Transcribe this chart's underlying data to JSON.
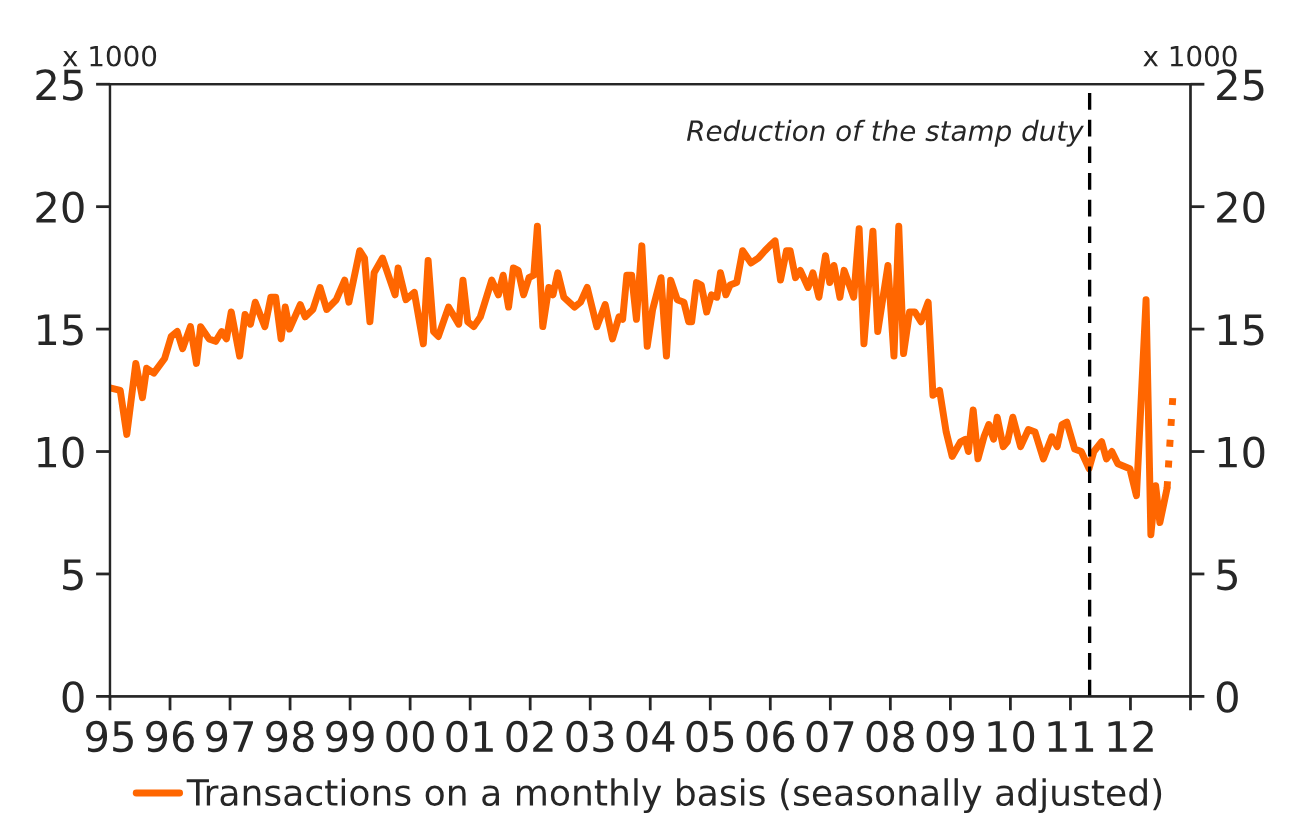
{
  "chart_data": {
    "type": "line",
    "ylabel": "x 1000",
    "y2label": "x 1000",
    "xlim": [
      1995,
      2013
    ],
    "xticks": [
      {
        "value": 1995,
        "label": "95"
      },
      {
        "value": 1996,
        "label": "96"
      },
      {
        "value": 1997,
        "label": "97"
      },
      {
        "value": 1998,
        "label": "98"
      },
      {
        "value": 1999,
        "label": "99"
      },
      {
        "value": 2000,
        "label": "00"
      },
      {
        "value": 2001,
        "label": "01"
      },
      {
        "value": 2002,
        "label": "02"
      },
      {
        "value": 2003,
        "label": "03"
      },
      {
        "value": 2004,
        "label": "04"
      },
      {
        "value": 2005,
        "label": "05"
      },
      {
        "value": 2006,
        "label": "06"
      },
      {
        "value": 2007,
        "label": "07"
      },
      {
        "value": 2008,
        "label": "08"
      },
      {
        "value": 2009,
        "label": "09"
      },
      {
        "value": 2010,
        "label": "10"
      },
      {
        "value": 2011,
        "label": "11"
      },
      {
        "value": 2012,
        "label": "12"
      },
      {
        "value": 2013,
        "label": null
      }
    ],
    "ylim": [
      0,
      25
    ],
    "yticks": [
      0,
      5,
      10,
      15,
      20,
      25
    ],
    "y2lim": [
      0,
      25
    ],
    "y2ticks": [
      0,
      5,
      10,
      15,
      20,
      25
    ],
    "grid": false,
    "legend": "bottom",
    "marker": "none",
    "ref_lines": [
      {
        "axis": "x",
        "value": 2011.32,
        "label": "Reduction of the stamp duty",
        "color": "#000000",
        "line_style": "dashed"
      }
    ],
    "series": [
      {
        "name": "Transactions on a monthly basis (seasonally adjusted)",
        "color": "#ff6600",
        "line_style": "solid",
        "x": [
          1995.0,
          1995.17,
          1995.28,
          1995.43,
          1995.54,
          1995.61,
          1995.73,
          1995.91,
          1996.02,
          1996.12,
          1996.21,
          1996.34,
          1996.44,
          1996.51,
          1996.65,
          1996.76,
          1996.86,
          1996.94,
          1997.02,
          1997.16,
          1997.25,
          1997.34,
          1997.42,
          1997.58,
          1997.68,
          1997.76,
          1997.85,
          1997.92,
          1997.99,
          1998.17,
          1998.25,
          1998.38,
          1998.5,
          1998.61,
          1998.77,
          1998.91,
          1998.98,
          1999.16,
          1999.24,
          1999.33,
          1999.4,
          1999.54,
          1999.75,
          1999.8,
          1999.93,
          2000.07,
          2000.22,
          2000.3,
          2000.39,
          2000.47,
          2000.64,
          2000.81,
          2000.88,
          2000.96,
          2001.06,
          2001.17,
          2001.36,
          2001.47,
          2001.55,
          2001.64,
          2001.72,
          2001.8,
          2001.89,
          2001.98,
          2002.06,
          2002.12,
          2002.21,
          2002.31,
          2002.38,
          2002.46,
          2002.56,
          2002.74,
          2002.84,
          2002.95,
          2003.11,
          2003.25,
          2003.37,
          2003.48,
          2003.54,
          2003.61,
          2003.69,
          2003.77,
          2003.86,
          2003.95,
          2004.04,
          2004.18,
          2004.27,
          2004.34,
          2004.45,
          2004.56,
          2004.64,
          2004.69,
          2004.77,
          2004.85,
          2004.94,
          2005.02,
          2005.11,
          2005.17,
          2005.26,
          2005.33,
          2005.44,
          2005.54,
          2005.68,
          2005.8,
          2005.91,
          2005.99,
          2006.08,
          2006.17,
          2006.27,
          2006.33,
          2006.42,
          2006.5,
          2006.63,
          2006.71,
          2006.81,
          2006.92,
          2006.99,
          2007.06,
          2007.16,
          2007.23,
          2007.39,
          2007.48,
          2007.56,
          2007.71,
          2007.79,
          2007.96,
          2008.06,
          2008.14,
          2008.22,
          2008.32,
          2008.41,
          2008.51,
          2008.63,
          2008.71,
          2008.82,
          2008.93,
          2009.03,
          2009.17,
          2009.25,
          2009.3,
          2009.38,
          2009.46,
          2009.56,
          2009.64,
          2009.72,
          2009.78,
          2009.88,
          2009.95,
          2010.04,
          2010.17,
          2010.3,
          2010.41,
          2010.55,
          2010.69,
          2010.78,
          2010.86,
          2010.94,
          2011.07,
          2011.18,
          2011.31,
          2011.39,
          2011.52,
          2011.6,
          2011.69,
          2011.79,
          2011.99,
          2012.1,
          2012.26,
          2012.34,
          2012.42,
          2012.49,
          2012.61
        ],
        "values": [
          12.6,
          12.5,
          10.7,
          13.6,
          12.2,
          13.4,
          13.2,
          13.8,
          14.7,
          14.9,
          14.2,
          15.1,
          13.6,
          15.1,
          14.6,
          14.5,
          14.9,
          14.6,
          15.7,
          13.9,
          15.6,
          15.2,
          16.1,
          15.1,
          16.3,
          16.3,
          14.6,
          15.9,
          15.0,
          16.0,
          15.5,
          15.8,
          16.7,
          15.8,
          16.2,
          17.0,
          16.1,
          18.2,
          17.9,
          15.3,
          17.3,
          17.9,
          16.4,
          17.5,
          16.2,
          16.5,
          14.4,
          17.8,
          14.9,
          14.7,
          15.9,
          15.2,
          17.0,
          15.3,
          15.1,
          15.5,
          17.0,
          16.4,
          17.2,
          15.9,
          17.5,
          17.4,
          16.4,
          17.1,
          17.2,
          19.2,
          15.1,
          16.7,
          16.4,
          17.3,
          16.3,
          15.9,
          16.1,
          16.7,
          15.1,
          16.0,
          14.6,
          15.5,
          15.4,
          17.2,
          17.2,
          15.4,
          18.4,
          14.3,
          15.8,
          17.1,
          13.9,
          17.0,
          16.2,
          16.1,
          15.3,
          15.3,
          16.9,
          16.8,
          15.7,
          16.4,
          16.3,
          17.3,
          16.4,
          16.8,
          16.9,
          18.2,
          17.7,
          17.9,
          18.2,
          18.4,
          18.6,
          17.0,
          18.2,
          18.2,
          17.1,
          17.4,
          16.7,
          17.3,
          16.3,
          18.0,
          16.9,
          17.6,
          16.3,
          17.4,
          16.3,
          19.1,
          14.4,
          19.0,
          14.9,
          17.6,
          13.9,
          19.2,
          14.0,
          15.7,
          15.7,
          15.3,
          16.1,
          12.3,
          12.5,
          10.8,
          9.8,
          10.4,
          10.5,
          10.0,
          11.7,
          9.7,
          10.6,
          11.1,
          10.5,
          11.4,
          10.2,
          10.4,
          11.4,
          10.2,
          10.9,
          10.8,
          9.7,
          10.6,
          10.2,
          11.1,
          11.2,
          10.1,
          10.0,
          9.3,
          10.0,
          10.4,
          9.7,
          10.0,
          9.5,
          9.3,
          8.2,
          16.2,
          6.6,
          8.6,
          7.1,
          8.5
        ]
      },
      {
        "color": "#ff6600",
        "line_style": "dotted",
        "x": [
          2012.61,
          2012.71
        ],
        "values": [
          8.5,
          12.4
        ]
      }
    ]
  }
}
